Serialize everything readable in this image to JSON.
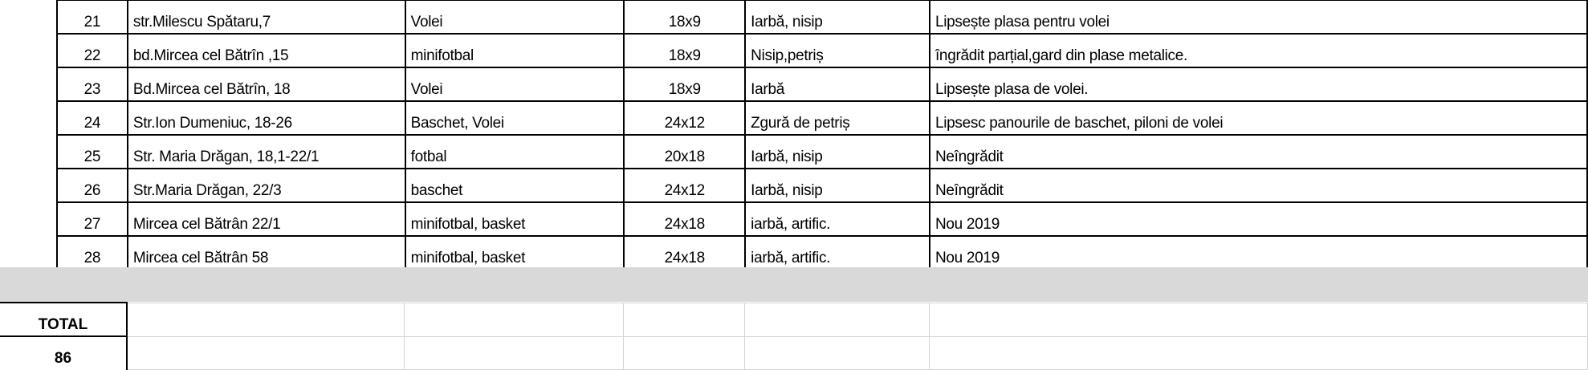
{
  "rows": [
    {
      "nr": "21",
      "address": "str.Milescu Spătaru,7",
      "type": "Volei",
      "size": "18x9",
      "surface": "Iarbă, nisip",
      "notes": "Lipsește plasa pentru volei"
    },
    {
      "nr": "22",
      "address": "bd.Mircea cel Bătrîn ,15",
      "type": "minifotbal",
      "size": "18x9",
      "surface": "Nisip,petriș",
      "notes": "îngrădit parțial,gard din plase metalice."
    },
    {
      "nr": "23",
      "address": "Bd.Mircea cel Bătrîn, 18",
      "type": "Volei",
      "size": "18x9",
      "surface": "Iarbă",
      "notes": "Lipsește plasa de volei."
    },
    {
      "nr": "24",
      "address": "Str.Ion Dumeniuc, 18-26",
      "type": "Baschet, Volei",
      "size": "24x12",
      "surface": "Zgură de petriș",
      "notes": "Lipsesc panourile de baschet, piloni de volei"
    },
    {
      "nr": "25",
      "address": "Str. Maria Drăgan, 18,1-22/1",
      "type": "fotbal",
      "size": "20x18",
      "surface": "Iarbă, nisip",
      "notes": "Neîngrădit"
    },
    {
      "nr": "26",
      "address": "Str.Maria Drăgan, 22/3",
      "type": "baschet",
      "size": "24x12",
      "surface": "Iarbă, nisip",
      "notes": "Neîngrădit"
    },
    {
      "nr": "27",
      "address": "Mircea cel Bătrân 22/1",
      "type": "minifotbal, basket",
      "size": "24x18",
      "surface": "iarbă, artific.",
      "notes": "Nou 2019"
    },
    {
      "nr": "28",
      "address": "Mircea cel Bătrân 58",
      "type": "minifotbal, basket",
      "size": "24x18",
      "surface": "iarbă, artific.",
      "notes": "Nou 2019"
    }
  ],
  "total": {
    "label": "TOTAL",
    "value": "86"
  }
}
